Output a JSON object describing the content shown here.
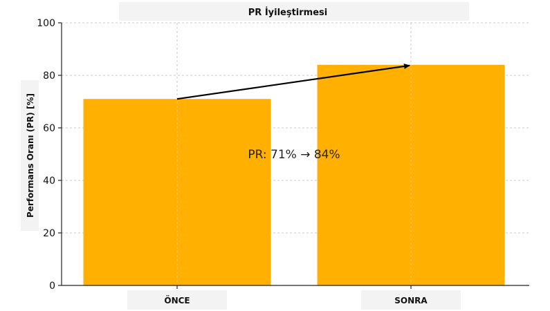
{
  "chart_data": {
    "type": "bar",
    "title": "PR İyileştirmesi",
    "xlabel": "",
    "ylabel": "Performans Oranı (PR) [%]",
    "categories": [
      "ÖNCE",
      "SONRA"
    ],
    "values": [
      71,
      84
    ],
    "ylim": [
      0,
      100
    ],
    "yticks": [
      "0",
      "20",
      "40",
      "60",
      "80",
      "100"
    ],
    "grid": true,
    "bar_color": "#ffb000",
    "annotation": "PR: 71% → 84%",
    "arrow": {
      "from_category": "ÖNCE",
      "from_value": 71,
      "to_category": "SONRA",
      "to_value": 84
    }
  }
}
